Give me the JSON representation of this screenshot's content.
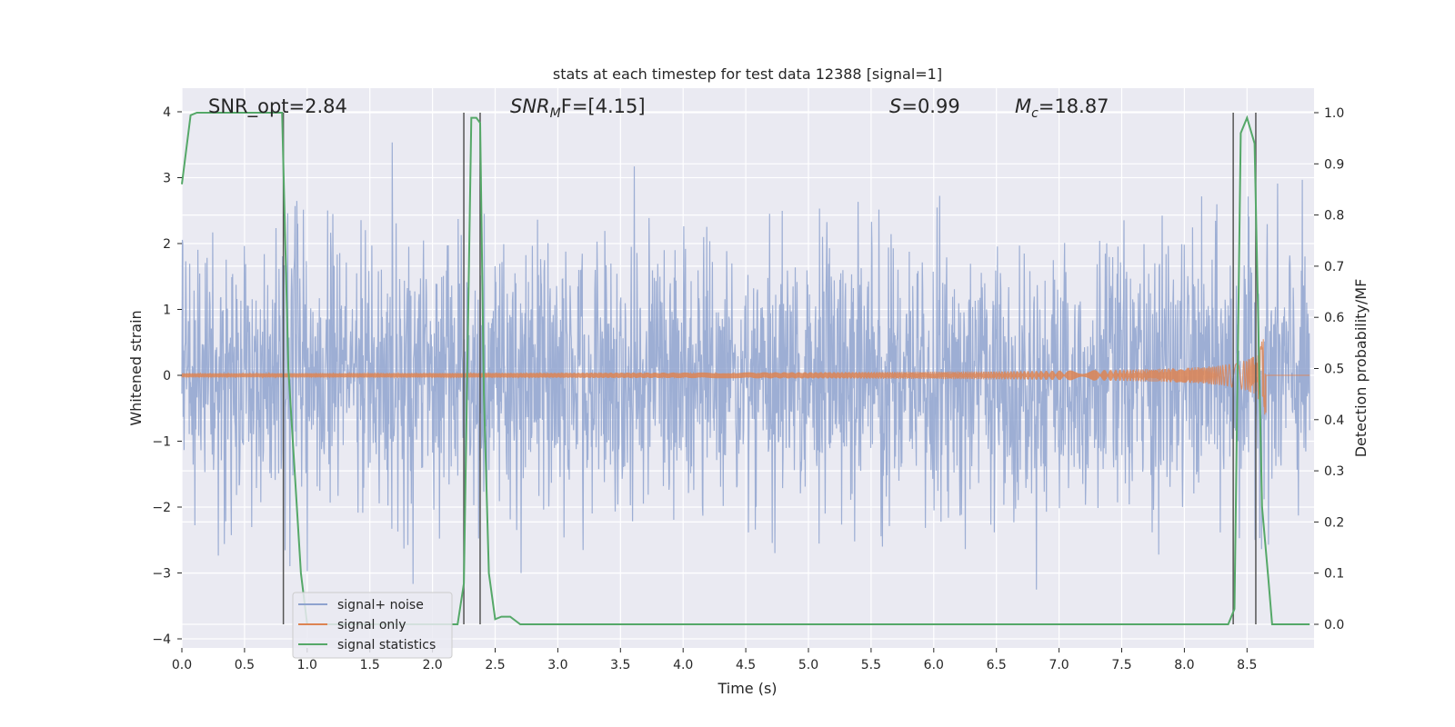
{
  "chart_data": {
    "type": "line",
    "title": "stats at each timestep for test data 12388 [signal=1]",
    "xlabel": "Time (s)",
    "ylabel_left": "Whitened strain",
    "ylabel_right": "Detection probability/MF",
    "xlim": [
      0,
      9.0
    ],
    "ylim_left": [
      -4.35,
      4.35
    ],
    "ylim_right": [
      0.0,
      1.0
    ],
    "x_ticks": [
      "0.0",
      "0.5",
      "1.0",
      "1.5",
      "2.0",
      "2.5",
      "3.0",
      "3.5",
      "4.0",
      "4.5",
      "5.0",
      "5.5",
      "6.0",
      "6.5",
      "7.0",
      "7.5",
      "8.0",
      "8.5"
    ],
    "y_ticks_left": [
      "4",
      "3",
      "2",
      "1",
      "0",
      "−1",
      "−2",
      "−3",
      "−4"
    ],
    "y_ticks_right": [
      "1.0",
      "0.9",
      "0.8",
      "0.7",
      "0.6",
      "0.5",
      "0.4",
      "0.3",
      "0.2",
      "0.1",
      "0.0"
    ],
    "grid": true,
    "legend_position": "lower-left",
    "annotations": {
      "snr_opt": "SNR_opt=2.84",
      "snr_mf_name": "SNR",
      "snr_mf_sub": "M",
      "snr_mf_rest": "F=[4.15]",
      "s_name": "S",
      "s_rest": "=0.99",
      "mc_name": "M",
      "mc_sub": "c",
      "mc_rest": "=18.87"
    },
    "series": [
      {
        "name": "signal+ noise",
        "color": "#8fa3cf",
        "description_values": {
          "band_low": -1.4,
          "band_high": 1.65,
          "max_abs": 4.0,
          "noise_amplitude_rms": 1.0
        }
      },
      {
        "name": "signal only",
        "color": "#dd8452",
        "chirp_end": 8.65,
        "chirp_peak_amplitude": 0.65
      },
      {
        "name": "signal statistics",
        "color": "#55a868",
        "points": [
          [
            0.0,
            0.86
          ],
          [
            0.07,
            0.995
          ],
          [
            0.12,
            1.0
          ],
          [
            0.5,
            1.0
          ],
          [
            0.8,
            1.0
          ],
          [
            0.85,
            0.5
          ],
          [
            0.9,
            0.3
          ],
          [
            0.95,
            0.1
          ],
          [
            1.0,
            0.0
          ],
          [
            2.2,
            0.0
          ],
          [
            2.25,
            0.08
          ],
          [
            2.31,
            0.99
          ],
          [
            2.35,
            0.99
          ],
          [
            2.38,
            0.98
          ],
          [
            2.41,
            0.45
          ],
          [
            2.45,
            0.1
          ],
          [
            2.5,
            0.01
          ],
          [
            2.55,
            0.015
          ],
          [
            2.62,
            0.015
          ],
          [
            2.7,
            0.0
          ],
          [
            8.35,
            0.0
          ],
          [
            8.4,
            0.03
          ],
          [
            8.45,
            0.96
          ],
          [
            8.5,
            0.99
          ],
          [
            8.56,
            0.94
          ],
          [
            8.62,
            0.23
          ],
          [
            8.67,
            0.09
          ],
          [
            8.7,
            0.0
          ],
          [
            9.0,
            0.0
          ]
        ]
      }
    ],
    "vertical_markers": [
      0.81,
      2.25,
      2.38,
      8.39,
      8.57
    ]
  }
}
